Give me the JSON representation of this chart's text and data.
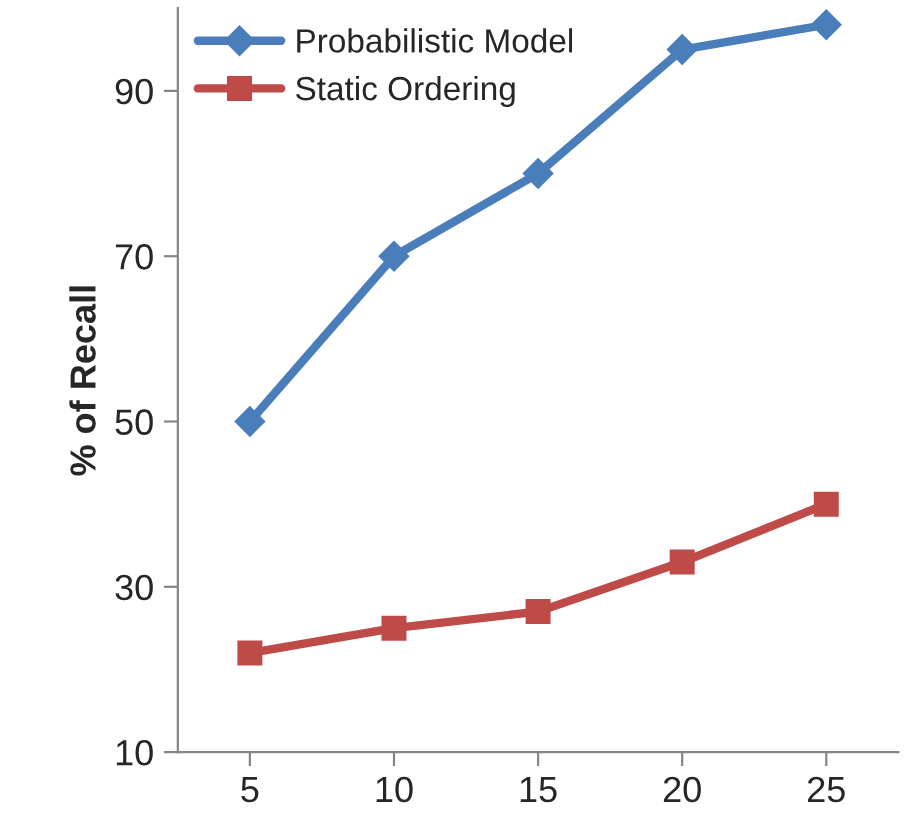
{
  "chart_data": {
    "type": "line",
    "ylabel": "% of Recall",
    "categories": [
      "5",
      "10",
      "15",
      "20",
      "25"
    ],
    "series": [
      {
        "name": "Probabilistic Model",
        "color": "#4a7ebb",
        "marker": "diamond",
        "values": [
          50,
          70,
          80,
          95,
          98
        ]
      },
      {
        "name": "Static Ordering",
        "color": "#be4b48",
        "marker": "square",
        "values": [
          22,
          25,
          27,
          33,
          40
        ]
      }
    ],
    "ylim": [
      10,
      100
    ],
    "yticks": [
      10,
      30,
      50,
      70,
      90
    ],
    "grid": false,
    "legend": "top left"
  }
}
